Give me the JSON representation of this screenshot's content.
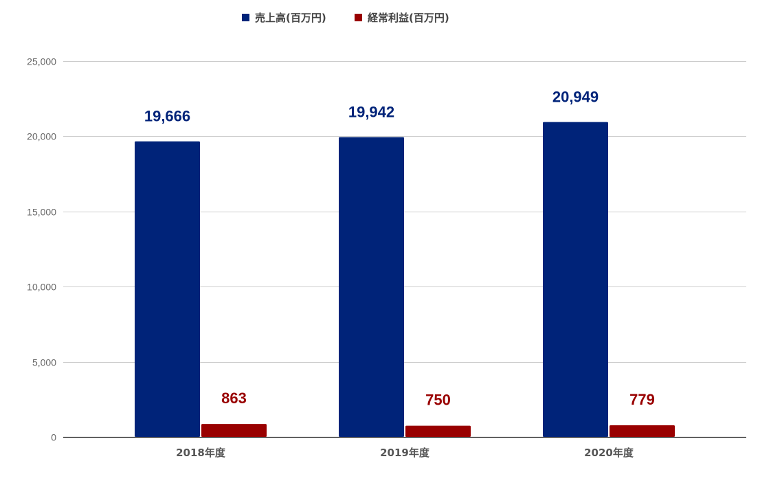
{
  "chart_data": {
    "type": "bar",
    "categories": [
      "2018年度",
      "2019年度",
      "2020年度"
    ],
    "series": [
      {
        "name": "売上高(百万円)",
        "values": [
          19666,
          19942,
          20949
        ],
        "labels": [
          "19,666",
          "19,942",
          "20,949"
        ],
        "color": "#002379"
      },
      {
        "name": "経常利益(百万円)",
        "values": [
          863,
          750,
          779
        ],
        "labels": [
          "863",
          "750",
          "779"
        ],
        "color": "#990000"
      }
    ],
    "ylim": [
      0,
      25000
    ],
    "yticks": [
      0,
      5000,
      10000,
      15000,
      20000,
      25000
    ],
    "ytick_labels": [
      "0",
      "5,000",
      "10,000",
      "15,000",
      "20,000",
      "25,000"
    ],
    "grid": true,
    "legend_position": "top-center",
    "title": "",
    "xlabel": "",
    "ylabel": ""
  }
}
